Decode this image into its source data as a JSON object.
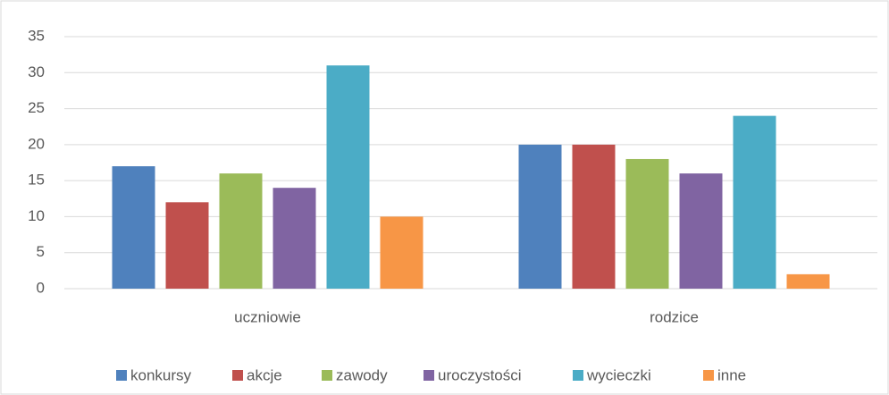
{
  "chart_data": {
    "type": "bar",
    "categories": [
      "uczniowie",
      "rodzice"
    ],
    "series": [
      {
        "name": "konkursy",
        "color": "#4f81bd",
        "values": [
          17,
          20
        ]
      },
      {
        "name": "akcje",
        "color": "#c0504d",
        "values": [
          12,
          20
        ]
      },
      {
        "name": "zawody",
        "color": "#9bbb59",
        "values": [
          16,
          18
        ]
      },
      {
        "name": "uroczystości",
        "color": "#8064a2",
        "values": [
          14,
          16
        ]
      },
      {
        "name": "wycieczki",
        "color": "#4bacc6",
        "values": [
          31,
          24
        ]
      },
      {
        "name": "inne",
        "color": "#f79646",
        "values": [
          10,
          2
        ]
      }
    ],
    "ylim": [
      0,
      35
    ],
    "yticks": [
      0,
      5,
      10,
      15,
      20,
      25,
      30,
      35
    ],
    "grid": true,
    "legend": "bottom"
  }
}
